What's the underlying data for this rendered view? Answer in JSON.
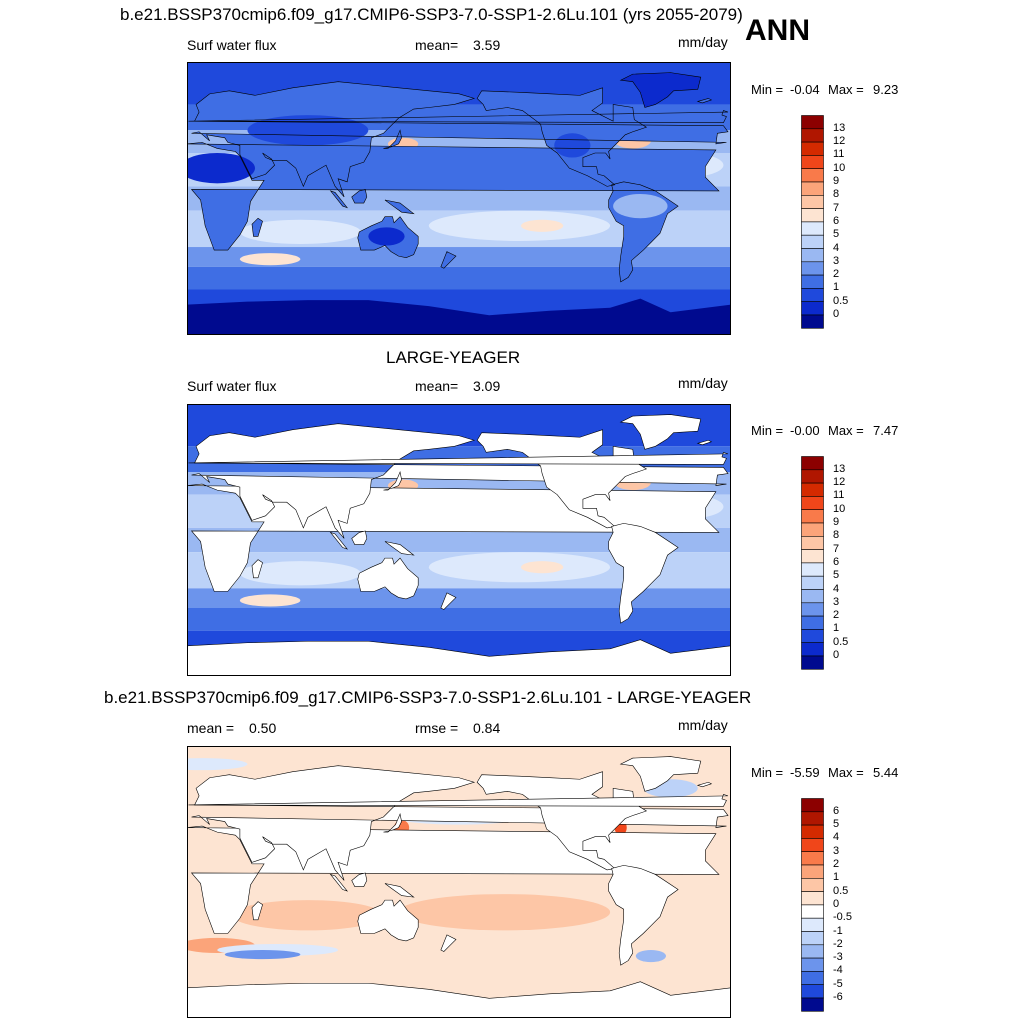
{
  "figure": {
    "main_title": "b.e21.BSSP370cmip6.f09_g17.CMIP6-SSP3-7.0-SSP1-2.6Lu.101 (yrs 2055-2079)",
    "season": "ANN"
  },
  "panels": [
    {
      "id": "model",
      "title": "",
      "variable": "Surf water flux",
      "stat1_label": "mean=",
      "stat1_value": "3.59",
      "stat2_label": "",
      "stat2_value": "",
      "units": "mm/day",
      "min_label": "Min =",
      "min_value": "-0.04",
      "max_label": "Max =",
      "max_value": "9.23",
      "land_masked": false,
      "levels": [
        "13",
        "12",
        "11",
        "10",
        "9",
        "8",
        "7",
        "6",
        "5",
        "4",
        "3",
        "2",
        "1",
        "0.5",
        "0"
      ],
      "colors": [
        "#8c0000",
        "#b01600",
        "#d42a00",
        "#f0461a",
        "#f97a4a",
        "#fba47a",
        "#fdc6a6",
        "#fde4d2",
        "#dde9fc",
        "#bcd2f8",
        "#9ab8f2",
        "#6c94ec",
        "#3f6ee4",
        "#1f49dc",
        "#0c2acd",
        "#000a8f"
      ]
    },
    {
      "id": "obs",
      "title": "LARGE-YEAGER",
      "variable": "Surf water flux",
      "stat1_label": "mean=",
      "stat1_value": "3.09",
      "stat2_label": "",
      "stat2_value": "",
      "units": "mm/day",
      "min_label": "Min =",
      "min_value": "-0.00",
      "max_label": "Max =",
      "max_value": "7.47",
      "land_masked": true,
      "levels": [
        "13",
        "12",
        "11",
        "10",
        "9",
        "8",
        "7",
        "6",
        "5",
        "4",
        "3",
        "2",
        "1",
        "0.5",
        "0"
      ],
      "colors": [
        "#8c0000",
        "#b01600",
        "#d42a00",
        "#f0461a",
        "#f97a4a",
        "#fba47a",
        "#fdc6a6",
        "#fde4d2",
        "#dde9fc",
        "#bcd2f8",
        "#9ab8f2",
        "#6c94ec",
        "#3f6ee4",
        "#1f49dc",
        "#0c2acd",
        "#000a8f"
      ]
    },
    {
      "id": "diff",
      "title": "b.e21.BSSP370cmip6.f09_g17.CMIP6-SSP3-7.0-SSP1-2.6Lu.101 - LARGE-YEAGER",
      "variable": "",
      "stat1_label": "mean =",
      "stat1_value": "0.50",
      "stat2_label": "rmse =",
      "stat2_value": "0.84",
      "units": "mm/day",
      "min_label": "Min =",
      "min_value": "-5.59",
      "max_label": "Max =",
      "max_value": "5.44",
      "land_masked": true,
      "levels": [
        "6",
        "5",
        "4",
        "3",
        "2",
        "1",
        "0.5",
        "0",
        "-0.5",
        "-1",
        "-2",
        "-3",
        "-4",
        "-5",
        "-6"
      ],
      "colors": [
        "#8c0000",
        "#b01600",
        "#d42a00",
        "#f0461a",
        "#f97a4a",
        "#fba47a",
        "#fdc6a6",
        "#fde4d2",
        "#ffffff",
        "#dde9fc",
        "#bcd2f8",
        "#9ab8f2",
        "#6c94ec",
        "#3f6ee4",
        "#1f49dc",
        "#000a8f"
      ]
    }
  ]
}
